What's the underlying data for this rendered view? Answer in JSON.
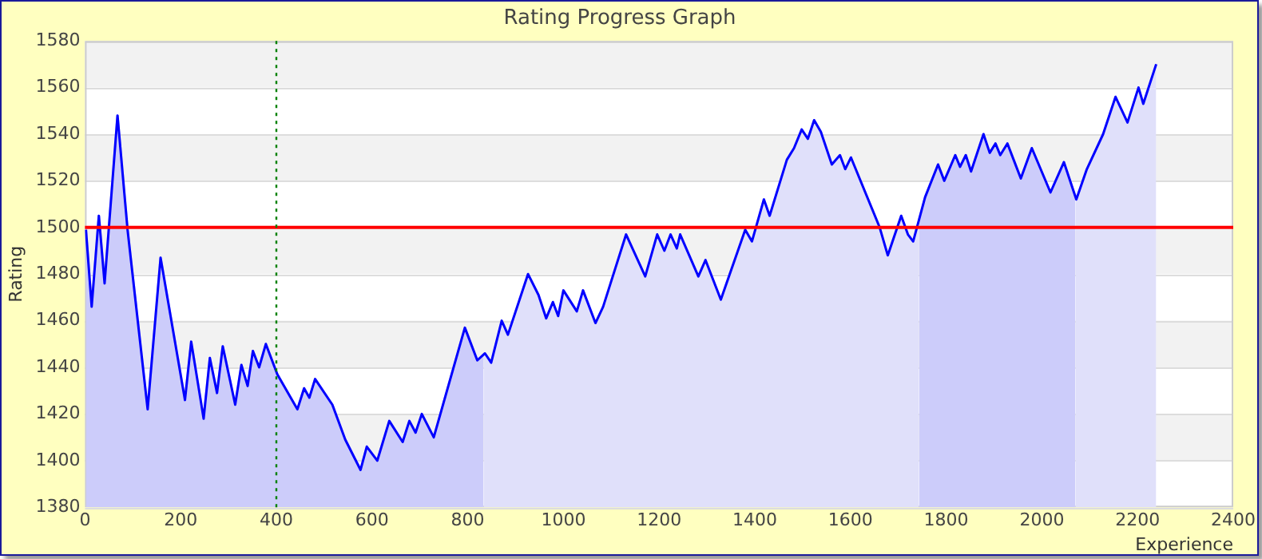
{
  "chart_data": {
    "type": "line",
    "title": "Rating Progress Graph",
    "xlabel": "Experience",
    "ylabel": "Rating",
    "xlim": [
      0,
      2400
    ],
    "xticks": [
      0,
      200,
      400,
      600,
      800,
      1000,
      1200,
      1400,
      1600,
      1800,
      2000,
      2200,
      2400
    ],
    "ylim": [
      1380,
      1580
    ],
    "yticks": [
      1380,
      1400,
      1420,
      1440,
      1460,
      1480,
      1500,
      1520,
      1540,
      1560,
      1580
    ],
    "grid": "y",
    "legend": false,
    "marker": "none",
    "line_style": "solid",
    "x": [
      2,
      14,
      29,
      41,
      68,
      89,
      131,
      158,
      209,
      222,
      248,
      261,
      276,
      288,
      314,
      327,
      340,
      351,
      364,
      378,
      402,
      444,
      458,
      469,
      481,
      517,
      544,
      576,
      589,
      611,
      636,
      664,
      678,
      691,
      704,
      729,
      794,
      820,
      836,
      849,
      871,
      884,
      926,
      948,
      964,
      978,
      989,
      1000,
      1028,
      1041,
      1067,
      1083,
      1131,
      1171,
      1196,
      1211,
      1224,
      1237,
      1244,
      1282,
      1297,
      1329,
      1380,
      1394,
      1419,
      1431,
      1467,
      1482,
      1498,
      1511,
      1524,
      1538,
      1561,
      1578,
      1589,
      1601,
      1661,
      1678,
      1706,
      1720,
      1731,
      1756,
      1783,
      1796,
      1819,
      1829,
      1841,
      1852,
      1878,
      1891,
      1903,
      1913,
      1928,
      1956,
      1979,
      2018,
      2046,
      2072,
      2094,
      2128,
      2154,
      2179,
      2202,
      2212,
      2239
    ],
    "series": [
      {
        "color": "#0000ff",
        "values": [
          1499,
          1466,
          1505,
          1476,
          1548,
          1499,
          1422,
          1487,
          1426,
          1451,
          1418,
          1444,
          1429,
          1449,
          1424,
          1441,
          1432,
          1447,
          1440,
          1450,
          1437,
          1422,
          1431,
          1427,
          1435,
          1424,
          1409,
          1396,
          1406,
          1400,
          1417,
          1408,
          1417,
          1412,
          1420,
          1410,
          1457,
          1443,
          1446,
          1442,
          1460,
          1454,
          1480,
          1471,
          1461,
          1468,
          1462,
          1473,
          1464,
          1473,
          1459,
          1466,
          1497,
          1479,
          1497,
          1490,
          1497,
          1491,
          1497,
          1479,
          1486,
          1469,
          1499,
          1494,
          1512,
          1505,
          1529,
          1534,
          1542,
          1538,
          1546,
          1541,
          1527,
          1531,
          1525,
          1530,
          1500,
          1488,
          1505,
          1497,
          1494,
          1513,
          1527,
          1520,
          1531,
          1526,
          1531,
          1524,
          1540,
          1532,
          1536,
          1531,
          1536,
          1521,
          1534,
          1515,
          1528,
          1512,
          1525,
          1540,
          1556,
          1545,
          1560,
          1553,
          1570
        ]
      },
      {
        "type": "area",
        "color": "#ccccfa",
        "x": [
          2,
          14,
          29,
          41,
          68,
          89,
          131,
          158,
          209,
          222,
          248,
          261,
          276,
          288,
          314,
          327,
          340,
          351,
          364,
          378,
          402,
          444,
          458,
          469,
          481,
          517,
          544,
          576,
          589,
          611,
          636,
          664,
          678,
          691,
          704,
          729,
          794,
          820,
          833
        ],
        "values": [
          1499,
          1466,
          1505,
          1476,
          1548,
          1499,
          1422,
          1487,
          1426,
          1451,
          1418,
          1444,
          1429,
          1449,
          1424,
          1441,
          1432,
          1447,
          1440,
          1450,
          1437,
          1422,
          1431,
          1427,
          1435,
          1424,
          1409,
          1396,
          1406,
          1400,
          1417,
          1408,
          1417,
          1412,
          1420,
          1410,
          1457,
          1443,
          1445
        ]
      },
      {
        "type": "area",
        "color": "#e0e0fa",
        "x": [
          833,
          836,
          849,
          871,
          884,
          926,
          948,
          964,
          978,
          989,
          1000,
          1028,
          1041,
          1067,
          1083,
          1131,
          1171,
          1196,
          1211,
          1224,
          1237,
          1244,
          1282,
          1297,
          1329,
          1380,
          1394,
          1419,
          1431,
          1467,
          1482,
          1498,
          1511,
          1524,
          1538,
          1561,
          1578,
          1589,
          1601,
          1661,
          1678,
          1706,
          1720,
          1731,
          1743
        ],
        "values": [
          1445,
          1446,
          1442,
          1460,
          1454,
          1480,
          1471,
          1461,
          1468,
          1462,
          1473,
          1464,
          1473,
          1459,
          1466,
          1497,
          1479,
          1497,
          1490,
          1497,
          1491,
          1497,
          1479,
          1486,
          1469,
          1499,
          1494,
          1512,
          1505,
          1529,
          1534,
          1542,
          1538,
          1546,
          1541,
          1527,
          1531,
          1525,
          1530,
          1500,
          1488,
          1505,
          1497,
          1494,
          1503
        ]
      },
      {
        "type": "area",
        "color": "#ccccfa",
        "x": [
          1743,
          1756,
          1783,
          1796,
          1819,
          1829,
          1841,
          1852,
          1878,
          1891,
          1903,
          1913,
          1928,
          1956,
          1979,
          2018,
          2046,
          2070
        ],
        "values": [
          1503,
          1513,
          1527,
          1520,
          1531,
          1526,
          1531,
          1524,
          1540,
          1532,
          1536,
          1531,
          1536,
          1521,
          1534,
          1515,
          1528,
          1513
        ]
      },
      {
        "type": "area",
        "color": "#e0e0fa",
        "x": [
          2070,
          2072,
          2094,
          2128,
          2154,
          2179,
          2202,
          2212,
          2239
        ],
        "values": [
          1513,
          1512,
          1525,
          1540,
          1556,
          1545,
          1560,
          1553,
          1570
        ]
      }
    ],
    "ref_lines": [
      {
        "axis": "y",
        "value": 1500,
        "color": "#ff0000",
        "line_style": "solid"
      },
      {
        "axis": "x",
        "value": 400,
        "color": "#008000",
        "line_style": "dotted"
      }
    ]
  }
}
